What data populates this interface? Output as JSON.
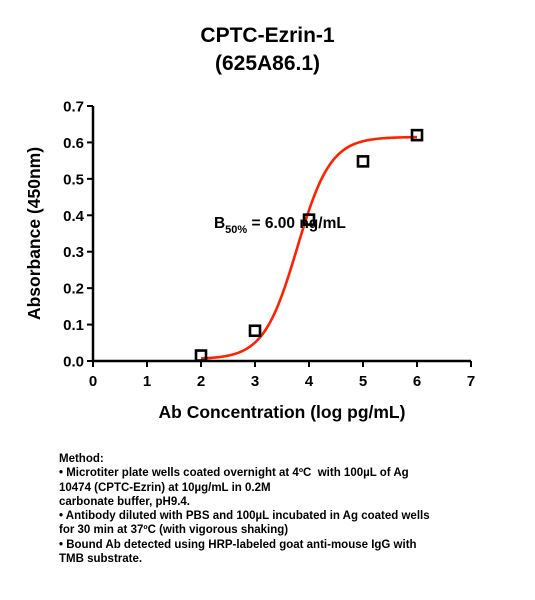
{
  "chart_data": {
    "type": "scatter",
    "title": "CPTC-Ezrin-1",
    "subtitle": "(625A86.1)",
    "xlabel": "Ab Concentration (log pg/mL)",
    "ylabel": "Absorbance (450nm)",
    "xlim": [
      0,
      7
    ],
    "ylim": [
      0,
      0.7
    ],
    "xticks": [
      "0",
      "1",
      "2",
      "3",
      "4",
      "5",
      "6",
      "7"
    ],
    "yticks": [
      "0.0",
      "0.1",
      "0.2",
      "0.3",
      "0.4",
      "0.5",
      "0.6",
      "0.7"
    ],
    "points": [
      {
        "x": 2,
        "y": 0.015
      },
      {
        "x": 3,
        "y": 0.083
      },
      {
        "x": 4,
        "y": 0.388
      },
      {
        "x": 5,
        "y": 0.548
      },
      {
        "x": 6,
        "y": 0.62
      }
    ],
    "fit": {
      "model": "4PL",
      "bottom": 0.005,
      "top": 0.615,
      "ec50": 3.78,
      "hill_slope": 1.4,
      "x_range": [
        2,
        6
      ]
    },
    "annotation": {
      "main": "B",
      "sub": "50%",
      "rest": " = 6.00 ng/mL",
      "x": 0.32,
      "y": 0.365
    },
    "grid": false,
    "marker_color": "#000000",
    "fit_color": "#ff2200"
  },
  "method": {
    "heading": "Method:",
    "lines": [
      "• Microtiter plate wells coated overnight at 4ºC  with 100µL of Ag",
      "10474 (CPTC-Ezrin) at 10µg/mL in 0.2M",
      "carbonate buffer, pH9.4.",
      "• Antibody diluted with PBS and 100µL incubated in Ag coated wells",
      "for 30 min at 37ºC (with vigorous shaking)",
      "• Bound Ab detected using HRP-labeled goat anti-mouse IgG with",
      "TMB substrate."
    ]
  }
}
